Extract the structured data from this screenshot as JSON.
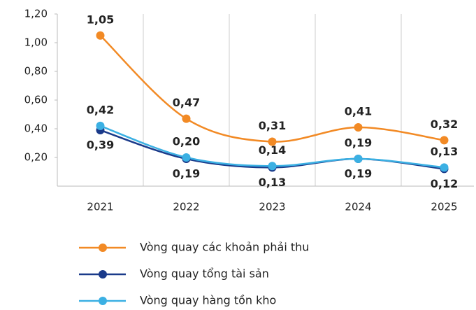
{
  "chart_data": {
    "type": "line",
    "categories": [
      "2021",
      "2022",
      "2023",
      "2024",
      "2025"
    ],
    "series": [
      {
        "name": "Vòng quay các khoản phải thu",
        "color": "#f28a25",
        "values": [
          1.05,
          0.47,
          0.31,
          0.41,
          0.32
        ],
        "value_labels": [
          "1,05",
          "0,47",
          "0,31",
          "0,41",
          "0,32"
        ],
        "label_position": "above"
      },
      {
        "name": "Vòng quay tổng tài sản",
        "color": "#1a3a8a",
        "values": [
          0.39,
          0.19,
          0.13,
          0.19,
          0.12
        ],
        "value_labels": [
          "0,39",
          "0,19",
          "0,13",
          "0,19",
          "0,12"
        ],
        "label_position": "below"
      },
      {
        "name": "Vòng quay hàng tồn kho",
        "color": "#3bb0e3",
        "values": [
          0.42,
          0.2,
          0.14,
          0.19,
          0.13
        ],
        "value_labels": [
          "0,42",
          "0,20",
          "0,14",
          "0,19",
          "0,13"
        ],
        "label_position": "above"
      }
    ],
    "ylim": [
      0,
      1.2
    ],
    "yticks": [
      {
        "value": 0.2,
        "label": "0,20"
      },
      {
        "value": 0.4,
        "label": "0,40"
      },
      {
        "value": 0.6,
        "label": "0,60"
      },
      {
        "value": 0.8,
        "label": "0,80"
      },
      {
        "value": 1.0,
        "label": "1,00"
      },
      {
        "value": 1.2,
        "label": "1,20"
      }
    ],
    "grid": "vertical",
    "legend": "bottom"
  }
}
